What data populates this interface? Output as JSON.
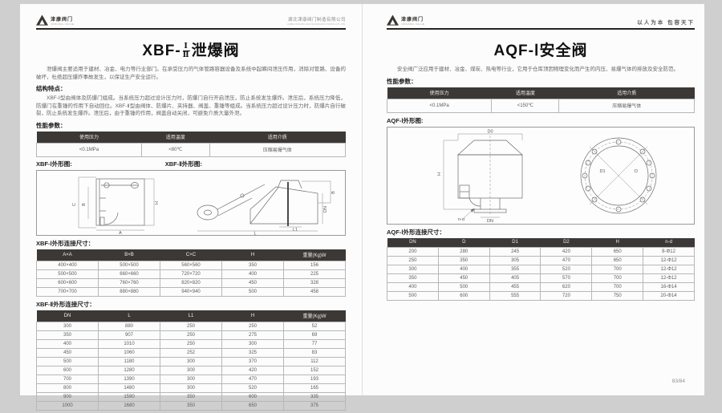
{
  "brand": {
    "logo_text": "津康阀门",
    "logo_sub": "JINKANG VALVE"
  },
  "left_page": {
    "header": {
      "company": "湖北津康阀门制造有限公司",
      "company_sub": "HUBEI JINKANG VALVE MANUFACTURING CO.,LTD."
    },
    "title": {
      "prefix": "XBF-",
      "frac_top": "Ⅰ",
      "frac_bottom": "Ⅱ",
      "suffix": "泄爆阀"
    },
    "intro": "泄爆阀主要适用于建材、冶金、电力等行业部门。在承受压力的气体管路容器设备及系统中起瞬间泄压作用，消除对管路、设备的破坏，杜绝超压爆炸事故发生，以保证生产安全运行。",
    "features_heading": "结构特点：",
    "features": "XBF-Ⅰ型由阀体及防爆门组成。当系统压力超过设计压力时，防爆门自行开启泄压，防止系统发生爆炸。泄压后，系统压力降低，防爆门在重锤的作用下自动回位。XBF-Ⅱ型由阀体、防爆片、夹持器、阀盖、重锤等组成。当系统压力超过设计压力时，防爆片自行破裂，防止系统发生爆炸。泄压后，由于重锤的作用，阀盖自动关闭，可避免介质大量外泄。",
    "params_heading": "性能参数：",
    "params_table": {
      "headers": [
        "使用压力",
        "适用温度",
        "适用介质"
      ],
      "rows": [
        [
          "<0.1MPa",
          "<80℃",
          "压缩易爆气体"
        ]
      ]
    },
    "diagram1_label": "XBF-Ⅰ外形图:",
    "diagram2_label": "XBF-Ⅱ外形图:",
    "diagram1_dims": [
      "C",
      "B",
      "H",
      "A"
    ],
    "diagram2_dims": [
      "B",
      "DN",
      "L1",
      "L"
    ],
    "dim1_heading": "XBF-Ⅰ外形连接尺寸：",
    "dim1_table": {
      "headers": [
        "A×A",
        "B×B",
        "C×C",
        "H",
        "重量(Kg)W"
      ],
      "rows": [
        [
          "400×400",
          "500×500",
          "560×560",
          "350",
          "156"
        ],
        [
          "500×500",
          "660×660",
          "720×720",
          "400",
          "225"
        ],
        [
          "600×600",
          "760×760",
          "820×820",
          "450",
          "328"
        ],
        [
          "700×700",
          "880×880",
          "940×940",
          "500",
          "458"
        ]
      ]
    },
    "dim2_heading": "XBF-Ⅱ外形连接尺寸：",
    "dim2_table": {
      "headers": [
        "DN",
        "L",
        "L1",
        "H",
        "重量(Kg)W"
      ],
      "rows": [
        [
          "300",
          "880",
          "250",
          "250",
          "52"
        ],
        [
          "350",
          "907",
          "250",
          "275",
          "69"
        ],
        [
          "400",
          "1010",
          "250",
          "300",
          "77"
        ],
        [
          "450",
          "1060",
          "252",
          "325",
          "83"
        ],
        [
          "500",
          "1180",
          "300",
          "370",
          "112"
        ],
        [
          "600",
          "1280",
          "300",
          "420",
          "152"
        ],
        [
          "700",
          "1390",
          "300",
          "470",
          "193"
        ],
        [
          "800",
          "1480",
          "300",
          "520",
          "165"
        ],
        [
          "900",
          "1590",
          "350",
          "600",
          "335"
        ],
        [
          "1000",
          "1680",
          "350",
          "650",
          "375"
        ]
      ]
    }
  },
  "right_page": {
    "header": {
      "slogan": "以人为本  包容天下"
    },
    "title": "AQF-Ⅰ安全阀",
    "intro": "安全阀广泛应用于建材、冶金、煤炭、热电等行业，它用于仓库顶因物理变化而产生的内压、易爆气体的排放及安全防范。",
    "params_heading": "性能参数：",
    "params_table": {
      "headers": [
        "使用压力",
        "适用温度",
        "适用介质"
      ],
      "rows": [
        [
          "<0.1MPa",
          "<150℃",
          "压缩易爆气体"
        ]
      ]
    },
    "diagram_label": "AQF-Ⅰ外形图:",
    "diagram_dims": [
      "D0",
      "H",
      "n-d",
      "DN",
      "D1",
      "D"
    ],
    "dim_heading": "AQF-Ⅰ外形连接尺寸：",
    "dim_table": {
      "headers": [
        "DN",
        "D",
        "D1",
        "D2",
        "H",
        "n-d"
      ],
      "rows": [
        [
          "200",
          "280",
          "245",
          "420",
          "650",
          "8-Φ12"
        ],
        [
          "250",
          "350",
          "305",
          "470",
          "650",
          "12-Φ12"
        ],
        [
          "300",
          "400",
          "355",
          "520",
          "700",
          "12-Φ12"
        ],
        [
          "350",
          "450",
          "405",
          "570",
          "700",
          "12-Φ12"
        ],
        [
          "400",
          "500",
          "455",
          "620",
          "700",
          "16-Φ14"
        ],
        [
          "500",
          "600",
          "555",
          "720",
          "750",
          "20-Φ14"
        ]
      ]
    },
    "page_number": "83/84"
  }
}
